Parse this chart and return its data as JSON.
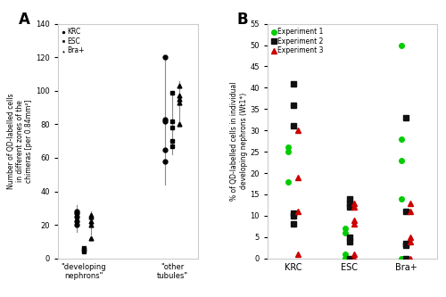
{
  "panel_A": {
    "ylabel": "Number of QD-labelled cells\nin different zones of the\nchimeras [per 0.84mm²]",
    "ylim": [
      0,
      140
    ],
    "yticks": [
      0,
      20,
      40,
      60,
      80,
      100,
      120,
      140
    ],
    "categories": [
      "\"developing\nnephrons\"",
      "\"other\ntubules\""
    ],
    "legend_labels": [
      "KRC",
      "ESC",
      "Bra+"
    ],
    "legend_markers": [
      "o",
      "s",
      "^"
    ],
    "KRC_nephrons": [
      20,
      22,
      25,
      27,
      28
    ],
    "ESC_nephrons": [
      4,
      5,
      6
    ],
    "Bra_nephrons": [
      12,
      20,
      22,
      25,
      26
    ],
    "KRC_tubules": [
      58,
      65,
      82,
      83,
      120
    ],
    "ESC_tubules": [
      67,
      70,
      78,
      82,
      99
    ],
    "Bra_tubules": [
      80,
      93,
      95,
      97,
      103
    ],
    "KRC_nephrons_mean": 24,
    "KRC_nephrons_err": 8,
    "ESC_nephrons_mean": 5,
    "ESC_nephrons_err": 1,
    "Bra_nephrons_mean": 21,
    "Bra_nephrons_err": 7,
    "KRC_tubules_mean": 82,
    "KRC_tubules_err": 38,
    "ESC_tubules_mean": 80,
    "ESC_tubules_err": 18,
    "Bra_tubules_mean": 93,
    "Bra_tubules_err": 13
  },
  "panel_B": {
    "ylabel": "% of QD-labelled cells in individual\ndeveloping nephrons (Wt1*)",
    "ylim": [
      0,
      55
    ],
    "yticks": [
      0,
      5,
      10,
      15,
      20,
      25,
      30,
      35,
      40,
      45,
      50,
      55
    ],
    "categories": [
      "KRC",
      "ESC",
      "Bra+"
    ],
    "legend_labels": [
      "Experiment 1",
      "Experiment 2",
      "Experiment 3"
    ],
    "legend_colors": [
      "#00cc00",
      "#111111",
      "#cc0000"
    ],
    "legend_markers": [
      "o",
      "s",
      "^"
    ],
    "KRC_exp1": [
      18,
      25,
      26
    ],
    "KRC_exp2": [
      8,
      10,
      10.5,
      31,
      36,
      41
    ],
    "KRC_exp3": [
      1,
      11,
      19,
      30
    ],
    "ESC_exp1": [
      0,
      0,
      0,
      1,
      6,
      7
    ],
    "ESC_exp2": [
      0,
      4,
      5,
      12,
      13,
      14
    ],
    "ESC_exp3": [
      0,
      1,
      8,
      9,
      12,
      13
    ],
    "Bra_exp1": [
      0,
      14,
      23,
      28,
      50
    ],
    "Bra_exp2": [
      0,
      3,
      3.5,
      11,
      33
    ],
    "Bra_exp3": [
      0,
      4,
      5,
      11,
      13
    ]
  }
}
